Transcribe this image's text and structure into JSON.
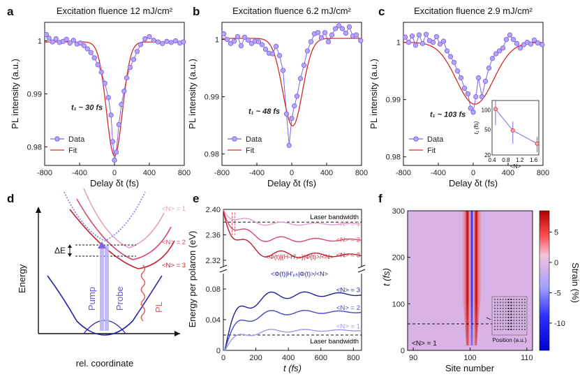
{
  "colors": {
    "data": "#8062e8",
    "fit": "#d62828",
    "n1_light": "#e39fc8",
    "n2_mid": "#d24b6a",
    "n3_dark": "#c41e2e",
    "blue_dark": "#1f1f8f",
    "blue_mid": "#4848c8",
    "blue_light": "#9a9ae6",
    "strain_pos": "#c00000",
    "strain_neg": "#1a1aff",
    "strain_zero": "#d9b3e6"
  },
  "chart_data": [
    {
      "panel": "a",
      "type": "scatter",
      "title": "Excitation fluence 12 mJ/cm²",
      "xlabel": "Delay δt (fs)",
      "ylabel": "PL intensity (a.u.)",
      "xlim": [
        -800,
        800
      ],
      "ylim": [
        0.9765,
        1.0035
      ],
      "xticks": [
        "-800",
        "-400",
        "0",
        "400",
        "800"
      ],
      "yticks": [
        "0.98",
        "0.99",
        "1"
      ],
      "annotation": "t₁ ~ 30 fs",
      "legend": [
        "Data",
        "Fit"
      ],
      "series": [
        {
          "name": "Data",
          "x": [
            -780,
            -750,
            -710,
            -670,
            -630,
            -590,
            -550,
            -510,
            -470,
            -430,
            -390,
            -350,
            -310,
            -270,
            -230,
            -190,
            -150,
            -110,
            -70,
            -40,
            -20,
            0,
            20,
            50,
            80,
            110,
            140,
            180,
            220,
            260,
            300,
            350,
            400,
            450,
            500,
            550,
            600,
            650,
            700,
            750,
            790
          ],
          "y": [
            1.0012,
            1.0005,
            0.9998,
            1.0004,
            0.9997,
            0.9999,
            1.0003,
            0.9996,
            1.0001,
            0.9994,
            0.9996,
            0.9991,
            0.9985,
            0.9978,
            0.9968,
            0.9955,
            0.9941,
            0.992,
            0.9893,
            0.986,
            0.981,
            0.9775,
            0.979,
            0.9842,
            0.988,
            0.9905,
            0.993,
            0.995,
            0.9965,
            0.998,
            0.9993,
            1.0004,
            1.0008,
            1.0001,
            0.9998,
            0.9995,
            0.9999,
            0.9997,
            1.0,
            0.9996,
            0.9998
          ]
        },
        {
          "name": "Fit",
          "center": 0,
          "width_fs": 130,
          "depth": 0.0215,
          "baseline": 0.9998
        }
      ]
    },
    {
      "panel": "b",
      "type": "scatter",
      "title": "Excitation fluence 6.2 mJ/cm²",
      "xlabel": "Delay δt (fs)",
      "ylabel": "PL intensity (a.u.)",
      "xlim": [
        -800,
        800
      ],
      "ylim": [
        0.978,
        1.003
      ],
      "xticks": [
        "-800",
        "-400",
        "0",
        "400",
        "800"
      ],
      "yticks": [
        "0.98",
        "0.99",
        "1"
      ],
      "annotation": "t₁ ~ 48 fs",
      "legend": [
        "Data",
        "Fit"
      ],
      "series": [
        {
          "name": "Data",
          "x": [
            -780,
            -740,
            -700,
            -660,
            -620,
            -580,
            -540,
            -500,
            -460,
            -420,
            -380,
            -340,
            -300,
            -260,
            -220,
            -180,
            -140,
            -100,
            -60,
            -30,
            0,
            30,
            60,
            100,
            140,
            180,
            220,
            260,
            300,
            340,
            380,
            420,
            460,
            500,
            540,
            580,
            620,
            660,
            700,
            740,
            790
          ],
          "y": [
            1.001,
            1.0,
            0.9993,
            0.9997,
            1.0005,
            0.9989,
            1.0004,
            0.9999,
            0.9993,
            0.9997,
            0.9996,
            0.9991,
            0.9983,
            0.9976,
            0.9975,
            0.9988,
            0.9972,
            0.9946,
            0.987,
            0.9815,
            0.9862,
            0.9884,
            0.9901,
            0.9932,
            0.9955,
            0.998,
            0.9996,
            1.001,
            1.0012,
            1.0003,
            1.0012,
            0.9996,
            1.0008,
            1.0019,
            1.0024,
            1.0019,
            1.0011,
            1.0022,
            1.0006,
            1.0008,
            0.9998
          ]
        },
        {
          "name": "Fit",
          "center": 10,
          "width_fs": 160,
          "depth": 0.0153,
          "baseline": 1.0002
        }
      ]
    },
    {
      "panel": "c",
      "type": "scatter",
      "title": "Excitation fluence 2.9 mJ/cm²",
      "xlabel": "Delay δt (fs)",
      "ylabel": "PL intensity (a.u.)",
      "xlim": [
        -800,
        800
      ],
      "ylim": [
        0.9785,
        1.0035
      ],
      "xticks": [
        "-800",
        "-400",
        "0",
        "400",
        "800"
      ],
      "yticks": [
        "0.98",
        "0.99",
        "1"
      ],
      "annotation": "t₁ ~ 103 fs",
      "legend": [
        "Data",
        "Fit"
      ],
      "series": [
        {
          "name": "Data",
          "x": [
            -780,
            -740,
            -700,
            -660,
            -620,
            -580,
            -540,
            -500,
            -460,
            -420,
            -380,
            -340,
            -300,
            -260,
            -220,
            -180,
            -140,
            -100,
            -60,
            -30,
            0,
            30,
            60,
            100,
            140,
            180,
            220,
            260,
            300,
            340,
            380,
            420,
            460,
            500,
            540,
            580,
            620,
            660,
            700,
            740,
            790
          ],
          "y": [
            1.0009,
            1.0,
            1.0011,
            0.9995,
            1.0013,
            0.9998,
            1.0014,
            1.0003,
            1.0,
            1.001,
            0.9997,
            1.0002,
            0.9985,
            0.9975,
            0.9965,
            0.995,
            0.9938,
            0.992,
            0.991,
            0.9885,
            0.9878,
            0.9905,
            0.9938,
            0.9905,
            0.9932,
            0.9955,
            0.9972,
            0.998,
            0.9985,
            0.999,
            1.0005,
            1.0013,
            1.0005,
            0.9998,
            0.999,
            0.9996,
            1.0,
            0.9997,
            1.0004,
            0.9999,
            0.9996
          ]
        },
        {
          "name": "Fit",
          "center": 20,
          "width_fs": 300,
          "depth": 0.0108,
          "baseline": 1.0
        }
      ],
      "inset": {
        "type": "scatter",
        "xlabel": "<N>",
        "ylabel": "t₁ (fs)",
        "xticks": [
          "0.4",
          "0.8",
          "1.2",
          "1.6"
        ],
        "yticks": [
          "100",
          "50",
          "20"
        ],
        "xlim": [
          0.4,
          1.75
        ],
        "y_scale": "log",
        "ylim": [
          20,
          140
        ],
        "x": [
          0.5,
          1.0,
          1.7
        ],
        "y": [
          103,
          48,
          30
        ],
        "y_err": [
          45,
          18,
          8
        ]
      }
    },
    {
      "panel": "d",
      "type": "diagram",
      "xlabel": "rel. coordinate",
      "ylabel": "Energy",
      "labels": [
        "ΔE",
        "Pump",
        "Probe",
        "PL",
        "<N> = 1",
        "<N> = 2",
        "<N> = 3"
      ]
    },
    {
      "panel": "e",
      "type": "line",
      "xlabel": "t (fs)",
      "ylabel": "Energy per polaron (eV)",
      "xlim": [
        0,
        850
      ],
      "xticks": [
        "0",
        "200",
        "400",
        "600",
        "800"
      ],
      "upper": {
        "ylim": [
          2.31,
          2.4
        ],
        "yticks": [
          "2.32",
          "2.36",
          "2.40"
        ],
        "bandwidth_label": "Laser bandwidth",
        "bandwidth_value": 2.38,
        "expression": "<Φ(t)|(H-H'ₚₕ)|Φ(t)>/<N>",
        "series": [
          {
            "name": "<N> = 1",
            "start": 2.4,
            "final": 2.377,
            "amp": 0.006
          },
          {
            "name": "<N> = 2",
            "start": 2.4,
            "final": 2.352,
            "amp": 0.01
          },
          {
            "name": "<N> = 3",
            "start": 2.4,
            "final": 2.328,
            "amp": 0.013
          }
        ]
      },
      "lower": {
        "ylim": [
          0,
          0.1
        ],
        "yticks": [
          "0",
          "0.04",
          "0.08"
        ],
        "bandwidth_label": "Laser bandwidth",
        "bandwidth_value": 0.02,
        "expression": "<Φ(t)|H'ₚₕ|Φ(t)>/<N>",
        "series": [
          {
            "name": "<N> = 3",
            "final": 0.073,
            "amp": 0.012
          },
          {
            "name": "<N> = 2",
            "final": 0.05,
            "amp": 0.008
          },
          {
            "name": "<N> = 1",
            "final": 0.026,
            "amp": 0.005
          }
        ]
      }
    },
    {
      "panel": "f",
      "type": "heatmap",
      "xlabel": "Site number",
      "ylabel": "t (fs)",
      "xticks": [
        "90",
        "100",
        "110"
      ],
      "yticks": [
        "0",
        "100",
        "200",
        "300"
      ],
      "colorbar_label": "Strain (%)",
      "colorbar_ticks": [
        "5",
        "0",
        "-5",
        "-10"
      ],
      "annotation": "<N> = 1",
      "inset_label": "Position (a.u.)"
    }
  ]
}
